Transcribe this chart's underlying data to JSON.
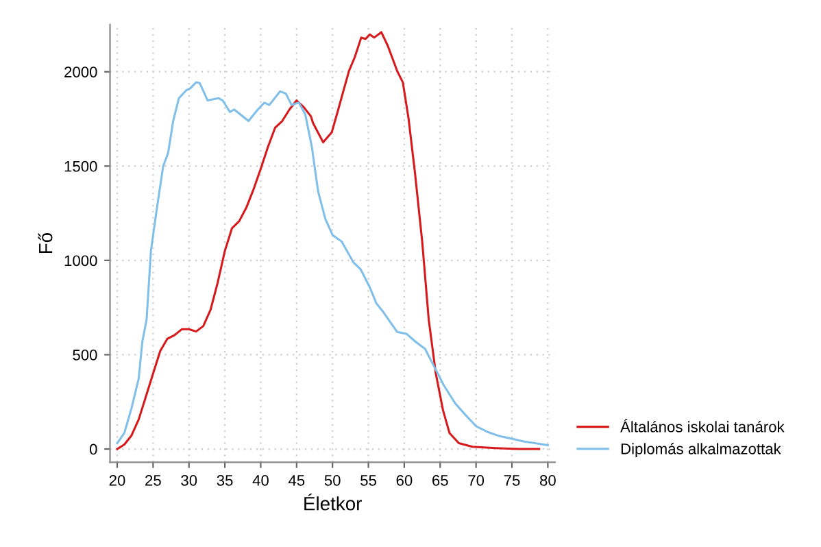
{
  "chart_data": {
    "type": "line",
    "xlabel": "Életkor",
    "ylabel": "Fő",
    "xlim": [
      19,
      81
    ],
    "ylim": [
      -70,
      2250
    ],
    "xticks": [
      20,
      25,
      30,
      35,
      40,
      45,
      50,
      55,
      60,
      65,
      70,
      75,
      80
    ],
    "yticks": [
      0,
      500,
      1000,
      1500,
      2000
    ],
    "grid": true,
    "legend": "bottom right",
    "line_style": "solid",
    "series": [
      {
        "name": "Általános iskolai tanárok",
        "color": "#d7191c",
        "x": [
          20,
          21,
          22,
          23,
          24,
          25,
          26,
          27,
          28,
          29,
          30,
          31,
          32,
          33,
          34,
          35,
          36,
          37,
          38,
          39,
          40,
          41,
          42,
          43,
          44,
          45,
          46,
          47,
          47.3,
          48.7,
          49.9,
          50.8,
          51.5,
          52.3,
          53.1,
          54.0,
          54.6,
          55.2,
          55.8,
          56.8,
          57.7,
          58.3,
          59.0,
          59.8,
          60.6,
          61.5,
          62.5,
          63.4,
          64.4,
          65.4,
          66.3,
          67.6,
          69.5,
          72.7,
          75.9,
          78.8
        ],
        "values": [
          0,
          24,
          72,
          157,
          278,
          400,
          520,
          585,
          604,
          635,
          635,
          623,
          652,
          737,
          882,
          1050,
          1171,
          1208,
          1280,
          1377,
          1486,
          1601,
          1703,
          1739,
          1800,
          1848,
          1812,
          1763,
          1727,
          1626,
          1679,
          1800,
          1896,
          2005,
          2077,
          2181,
          2174,
          2198,
          2181,
          2210,
          2138,
          2077,
          2005,
          1944,
          1751,
          1461,
          1099,
          688,
          399,
          205,
          85,
          31,
          12,
          5,
          0,
          0
        ]
      },
      {
        "name": "Diplomás alkalmazottak",
        "color": "#7fbfea",
        "x": [
          20,
          21,
          22,
          23,
          23.5,
          24.1,
          24.7,
          25.5,
          26.4,
          27.1,
          27.8,
          28.6,
          29.6,
          30.2,
          31.0,
          31.5,
          32.6,
          34.1,
          34.7,
          35.7,
          36.3,
          38.3,
          39.6,
          40.5,
          41.2,
          42.7,
          43.5,
          44.3,
          45.3,
          46.2,
          47.1,
          48.0,
          49.0,
          50.0,
          51.3,
          52.9,
          53.9,
          55.2,
          56.1,
          57.1,
          59.0,
          60.3,
          61.6,
          62.9,
          64.2,
          65.5,
          67.1,
          68.4,
          70.0,
          71.7,
          73.3,
          75.2,
          76.5,
          78.5,
          80
        ],
        "values": [
          31,
          85,
          217,
          374,
          568,
          688,
          1050,
          1268,
          1498,
          1570,
          1739,
          1860,
          1901,
          1913,
          1944,
          1940,
          1848,
          1860,
          1848,
          1787,
          1800,
          1739,
          1800,
          1836,
          1824,
          1896,
          1884,
          1824,
          1836,
          1775,
          1606,
          1365,
          1220,
          1135,
          1099,
          990,
          954,
          857,
          773,
          725,
          621,
          611,
          568,
          531,
          435,
          338,
          242,
          186,
          121,
          89,
          68,
          53,
          41,
          29,
          20
        ]
      }
    ]
  }
}
